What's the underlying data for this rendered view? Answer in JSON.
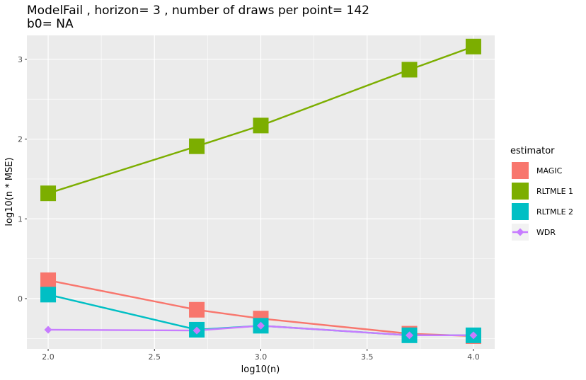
{
  "chart_data": {
    "type": "line",
    "title": "ModelFail , horizon= 3 , number of draws per point= 142",
    "subtitle": "b0= NA",
    "xlabel": "log10(n)",
    "ylabel": "log10(n * MSE)",
    "xlim": [
      1.9,
      4.1
    ],
    "ylim": [
      -0.63,
      3.3
    ],
    "x_ticks": [
      2.0,
      2.5,
      3.0,
      3.5,
      4.0
    ],
    "x_tick_labels": [
      "2.0",
      "2.5",
      "3.0",
      "3.5",
      "4.0"
    ],
    "y_ticks": [
      0,
      1,
      2,
      3
    ],
    "y_tick_labels": [
      "0",
      "1",
      "2",
      "3"
    ],
    "grid": true,
    "legend_title": "estimator",
    "legend_position": "right",
    "x": [
      2.0,
      2.699,
      3.0,
      3.699,
      4.0
    ],
    "series": [
      {
        "name": "MAGIC",
        "color": "#F8766D",
        "marker": "square",
        "values": [
          0.23,
          -0.14,
          -0.25,
          -0.44,
          -0.47
        ]
      },
      {
        "name": "RLTMLE 1",
        "color": "#7CAE00",
        "marker": "square",
        "values": [
          1.32,
          1.91,
          2.17,
          2.87,
          3.16
        ]
      },
      {
        "name": "RLTMLE 2",
        "color": "#00BFC4",
        "marker": "square",
        "values": [
          0.05,
          -0.39,
          -0.34,
          -0.46,
          -0.46
        ]
      },
      {
        "name": "WDR",
        "color": "#C77CFF",
        "marker": "diamond",
        "values": [
          -0.39,
          -0.4,
          -0.34,
          -0.46,
          -0.46
        ]
      }
    ]
  }
}
